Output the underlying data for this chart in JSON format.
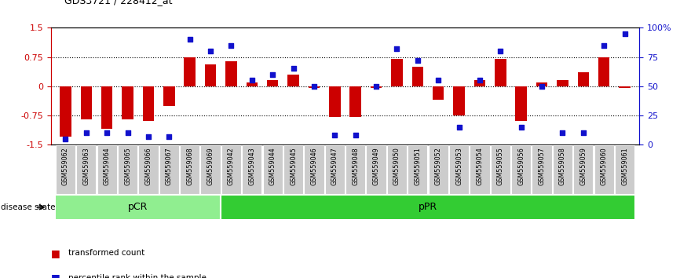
{
  "title": "GDS3721 / 228412_at",
  "samples": [
    "GSM559062",
    "GSM559063",
    "GSM559064",
    "GSM559065",
    "GSM559066",
    "GSM559067",
    "GSM559068",
    "GSM559069",
    "GSM559042",
    "GSM559043",
    "GSM559044",
    "GSM559045",
    "GSM559046",
    "GSM559047",
    "GSM559048",
    "GSM559049",
    "GSM559050",
    "GSM559051",
    "GSM559052",
    "GSM559053",
    "GSM559054",
    "GSM559055",
    "GSM559056",
    "GSM559057",
    "GSM559058",
    "GSM559059",
    "GSM559060",
    "GSM559061"
  ],
  "bar_values": [
    -1.3,
    -0.85,
    -1.1,
    -0.85,
    -0.9,
    -0.5,
    0.75,
    0.55,
    0.65,
    0.1,
    0.15,
    0.3,
    -0.05,
    -0.8,
    -0.8,
    -0.05,
    0.7,
    0.5,
    -0.35,
    -0.75,
    0.15,
    0.7,
    -0.9,
    0.1,
    0.15,
    0.35,
    0.75,
    -0.05
  ],
  "percentile_values": [
    5,
    10,
    10,
    10,
    7,
    7,
    90,
    80,
    85,
    55,
    60,
    65,
    50,
    8,
    8,
    50,
    82,
    72,
    55,
    15,
    55,
    80,
    15,
    50,
    10,
    10,
    85,
    95
  ],
  "pCR_count": 8,
  "pPR_count": 20,
  "bar_color": "#CC0000",
  "percentile_color": "#1111CC",
  "pCR_color": "#90EE90",
  "pPR_color": "#33CC33",
  "sample_box_color": "#CCCCCC",
  "ylim": [
    -1.5,
    1.5
  ],
  "yticks": [
    -1.5,
    -0.75,
    0.0,
    0.75,
    1.5
  ],
  "ytick_labels_left": [
    "-1.5",
    "-0.75",
    "0",
    "0.75",
    "1.5"
  ],
  "ytick_labels_right": [
    "0",
    "25",
    "50",
    "75",
    "100%"
  ],
  "legend_bar_label": "transformed count",
  "legend_pct_label": "percentile rank within the sample",
  "disease_state_label": "disease state",
  "pCR_label": "pCR",
  "pPR_label": "pPR"
}
